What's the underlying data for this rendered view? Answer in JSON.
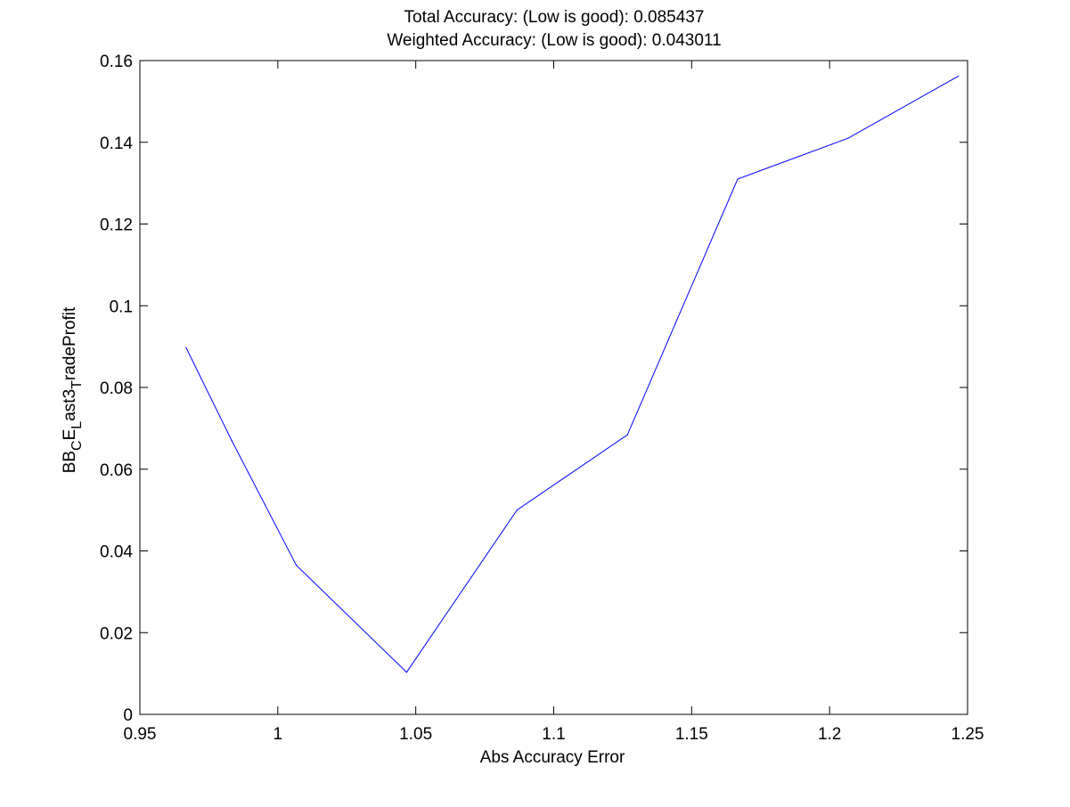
{
  "chart_data": {
    "type": "line",
    "title_lines": [
      "Total Accuracy: (Low is good): 0.085437",
      "Weighted Accuracy: (Low is good): 0.043011"
    ],
    "xlabel": "Abs Accuracy Error",
    "ylabel": {
      "segments": [
        {
          "text": "BB",
          "sub": false
        },
        {
          "text": "C",
          "sub": true
        },
        {
          "text": "E",
          "sub": false
        },
        {
          "text": "L",
          "sub": true
        },
        {
          "text": "ast3",
          "sub": false
        },
        {
          "text": "T",
          "sub": true
        },
        {
          "text": "radeProfit",
          "sub": false
        }
      ]
    },
    "xlim": [
      0.95,
      1.25
    ],
    "ylim": [
      0,
      0.16
    ],
    "xticks": [
      0.95,
      1,
      1.05,
      1.1,
      1.15,
      1.2,
      1.25
    ],
    "xtick_labels": [
      "0.95",
      "1",
      "1.05",
      "1.1",
      "1.15",
      "1.2",
      "1.25"
    ],
    "yticks": [
      0,
      0.02,
      0.04,
      0.06,
      0.08,
      0.1,
      0.12,
      0.14,
      0.16
    ],
    "ytick_labels": [
      "0",
      "0.02",
      "0.04",
      "0.06",
      "0.08",
      "0.1",
      "0.12",
      "0.14",
      "0.16"
    ],
    "grid": false,
    "legend": "none",
    "series": [
      {
        "color": "#0000ff",
        "x": [
          0.9667,
          0.9833,
          1.0067,
          1.0467,
          1.0867,
          1.1267,
          1.1667,
          1.2067,
          1.2467
        ],
        "y": [
          0.0898,
          0.067,
          0.0365,
          0.0103,
          0.05,
          0.0684,
          0.131,
          0.141,
          0.1562
        ]
      }
    ]
  }
}
